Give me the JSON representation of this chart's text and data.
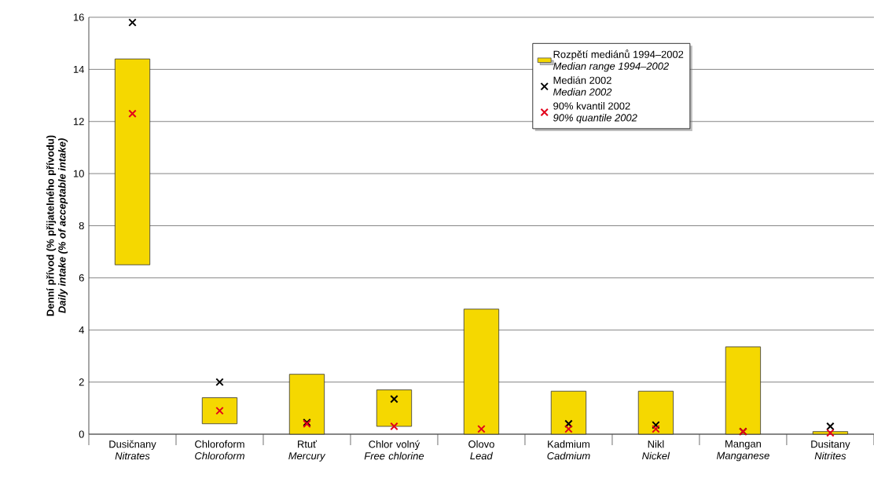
{
  "chart_data": {
    "type": "bar",
    "ylabel": "Denní přívod (% přijatelného přívodu)\n*Daily intake (% of acceptable intake)*",
    "categories": [
      "Dusičnany\n*Nitrates*",
      "Chloroform\n*Chloroform*",
      "Rtuť\n*Mercury*",
      "Chlor volný\n*Free chlorine*",
      "Olovo\n*Lead*",
      "Kadmium\n*Cadmium*",
      "Nikl\n*Nickel*",
      "Mangan\n*Manganese*",
      "Dusitany\n*Nitrites*"
    ],
    "series": [
      {
        "name": "Rozpětí mediánů 1994–2002\n*Median range 1994–2002*",
        "color": "#f5d800",
        "base": [
          6.5,
          0.4,
          0,
          0.3,
          0,
          0,
          0,
          0,
          0
        ],
        "values": [
          7.9,
          1.0,
          2.3,
          1.4,
          4.8,
          1.65,
          1.65,
          3.35,
          0.1
        ]
      },
      {
        "name": "Medián 2002\n*Median 2002*",
        "type": "scatter",
        "color": "#000000",
        "marker": "cross",
        "x": [
          "Dusičnany\n*Nitrates*",
          "Chloroform\n*Chloroform*",
          "Rtuť\n*Mercury*",
          "Chlor volný\n*Free chlorine*",
          "Olovo\n*Lead*",
          "Kadmium\n*Cadmium*",
          "Nikl\n*Nickel*",
          "Mangan\n*Manganese*",
          "Dusitany\n*Nitrites*"
        ],
        "values": [
          15.8,
          2.0,
          0.45,
          1.35,
          null,
          0.4,
          0.35,
          0.1,
          0.3
        ]
      },
      {
        "name": "90% kvantil 2002\n*90% quantile 2002*",
        "type": "scatter",
        "color": "#e2001a",
        "marker": "cross",
        "x": [
          "Dusičnany\n*Nitrates*",
          "Chloroform\n*Chloroform*",
          "Rtuť\n*Mercury*",
          "Chlor volný\n*Free chlorine*",
          "Olovo\n*Lead*",
          "Kadmium\n*Cadmium*",
          "Nikl\n*Nickel*",
          "Mangan\n*Manganese*",
          "Dusitany\n*Nitrites*"
        ],
        "values": [
          12.3,
          0.9,
          0.4,
          0.3,
          0.2,
          0.2,
          0.2,
          0.1,
          0.05
        ]
      }
    ],
    "ylim": [
      0,
      16
    ],
    "yticks": [
      0,
      2,
      4,
      6,
      8,
      10,
      12,
      14,
      16
    ],
    "grid": "y",
    "legend": "top right"
  }
}
